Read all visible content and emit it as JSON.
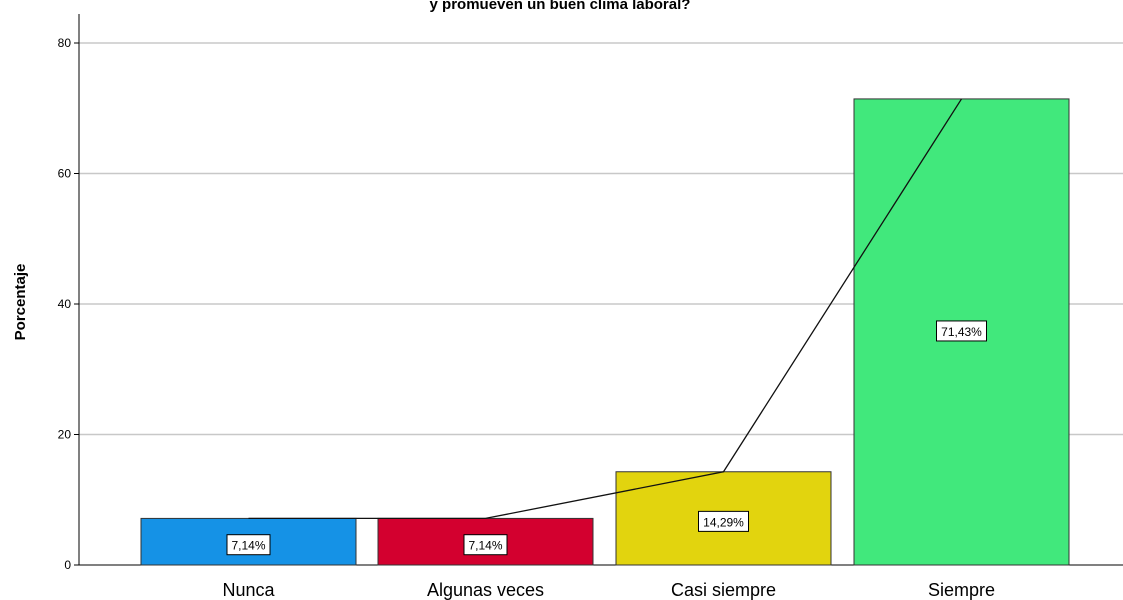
{
  "chart_data": {
    "type": "bar",
    "title": "y promueven un buen clima laboral?",
    "ylabel": "Porcentaje",
    "xlabel": "",
    "ylim": [
      0,
      80
    ],
    "yticks": [
      "0",
      "20",
      "40",
      "60",
      "80"
    ],
    "ytick_values": [
      0,
      20,
      40,
      60,
      80
    ],
    "grid": true,
    "categories": [
      "Nunca",
      "Algunas veces",
      "Casi siempre",
      "Siempre"
    ],
    "values": [
      7.14,
      7.14,
      14.29,
      71.43
    ],
    "data_labels": [
      "7,14%",
      "7,14%",
      "14,29%",
      "71,43%"
    ],
    "colors": [
      "#1592e6",
      "#d3002f",
      "#e2d40e",
      "#41e87c"
    ],
    "overlay_line": true
  }
}
